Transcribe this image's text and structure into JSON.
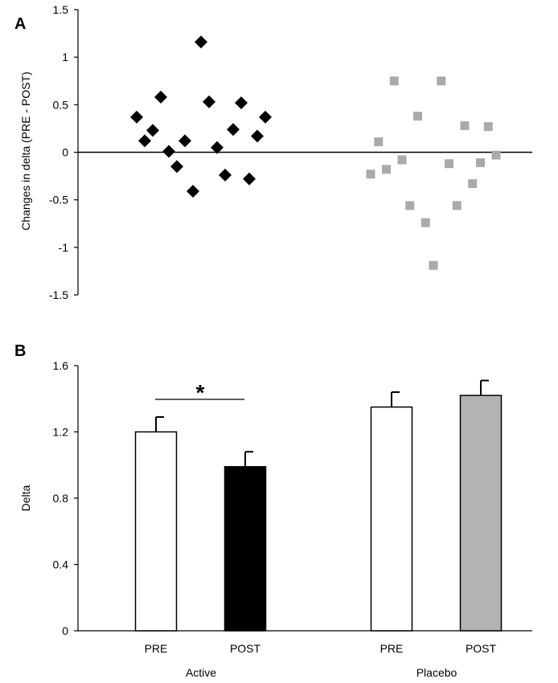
{
  "chart_data": [
    {
      "panel": "A",
      "type": "scatter",
      "ylabel": "Changes in delta (PRE - POST)",
      "ylim": [
        -1.5,
        1.5
      ],
      "yticks": [
        1.5,
        1,
        0.5,
        0,
        -0.5,
        -1,
        -1.5
      ],
      "ytick_labels": [
        "1.5",
        "1",
        "0.5",
        "0",
        "-0.5",
        "-1",
        "-1.5"
      ],
      "groups": [
        {
          "name": "Active",
          "marker": "diamond",
          "color": "#000000",
          "points": [
            {
              "x": 1,
              "y": 0.37
            },
            {
              "x": 2,
              "y": 0.12
            },
            {
              "x": 3,
              "y": 0.23
            },
            {
              "x": 4,
              "y": 0.58
            },
            {
              "x": 5,
              "y": 0.01
            },
            {
              "x": 6,
              "y": -0.15
            },
            {
              "x": 7,
              "y": 0.12
            },
            {
              "x": 8,
              "y": -0.41
            },
            {
              "x": 9,
              "y": 1.16
            },
            {
              "x": 10,
              "y": 0.53
            },
            {
              "x": 11,
              "y": 0.05
            },
            {
              "x": 12,
              "y": -0.24
            },
            {
              "x": 13,
              "y": 0.24
            },
            {
              "x": 14,
              "y": 0.52
            },
            {
              "x": 15,
              "y": -0.28
            },
            {
              "x": 16,
              "y": 0.17
            },
            {
              "x": 17,
              "y": 0.37
            }
          ]
        },
        {
          "name": "Placebo",
          "marker": "square",
          "color": "#aaaaaa",
          "points": [
            {
              "x": 1,
              "y": -0.23
            },
            {
              "x": 2,
              "y": 0.11
            },
            {
              "x": 3,
              "y": -0.18
            },
            {
              "x": 4,
              "y": 0.75
            },
            {
              "x": 5,
              "y": -0.08
            },
            {
              "x": 6,
              "y": -0.56
            },
            {
              "x": 7,
              "y": 0.38
            },
            {
              "x": 8,
              "y": -0.74
            },
            {
              "x": 9,
              "y": -1.19
            },
            {
              "x": 10,
              "y": 0.75
            },
            {
              "x": 11,
              "y": -0.12
            },
            {
              "x": 12,
              "y": -0.56
            },
            {
              "x": 13,
              "y": 0.28
            },
            {
              "x": 14,
              "y": -0.33
            },
            {
              "x": 15,
              "y": -0.11
            },
            {
              "x": 16,
              "y": 0.27
            },
            {
              "x": 17,
              "y": -0.03
            }
          ]
        }
      ]
    },
    {
      "panel": "B",
      "type": "bar",
      "ylabel": "Delta",
      "ylim": [
        0,
        1.6
      ],
      "yticks": [
        0,
        0.4,
        0.8,
        1.2,
        1.6
      ],
      "ytick_labels": [
        "0",
        "0.4",
        "0.8",
        "1.2",
        "1.6"
      ],
      "groups": [
        {
          "name": "Active",
          "bars": [
            {
              "label": "PRE",
              "value": 1.2,
              "error": 0.09,
              "color": "#ffffff"
            },
            {
              "label": "POST",
              "value": 0.99,
              "error": 0.09,
              "color": "#000000"
            }
          ]
        },
        {
          "name": "Placebo",
          "bars": [
            {
              "label": "PRE",
              "value": 1.35,
              "error": 0.09,
              "color": "#ffffff"
            },
            {
              "label": "POST",
              "value": 1.42,
              "error": 0.09,
              "color": "#b3b3b3"
            }
          ]
        }
      ],
      "significance": {
        "label": "*",
        "between": [
          "Active PRE",
          "Active POST"
        ]
      }
    }
  ]
}
